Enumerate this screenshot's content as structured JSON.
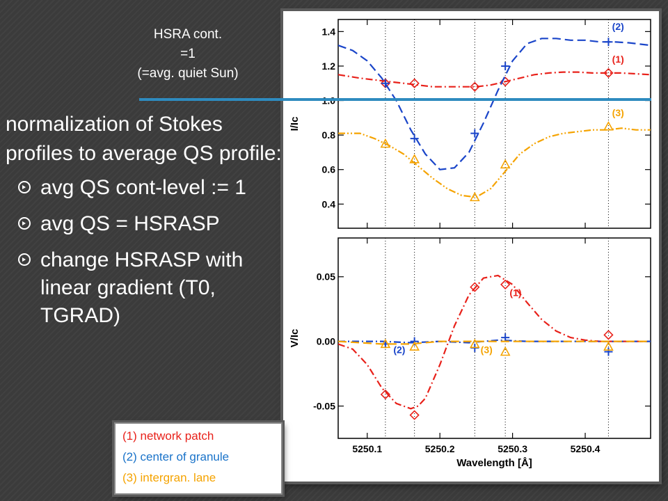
{
  "slide": {
    "top_label": [
      "HSRA cont.",
      "=1",
      "(=avg. quiet Sun)"
    ],
    "heading": "normalization of Stokes profiles to average QS profile:",
    "bullets": [
      "avg QS cont-level := 1",
      "avg QS = HSRASP",
      "change HSRASP with linear gradient (T0, TGRAD)"
    ],
    "line_color": "#2e8bbf",
    "legend": [
      {
        "label": "(1) network patch",
        "color": "#e8211a"
      },
      {
        "label": "(2) center of granule",
        "color": "#1a73c9"
      },
      {
        "label": "(3) intergran. lane",
        "color": "#f5a300"
      }
    ]
  },
  "chart_data": [
    {
      "type": "line",
      "panel": "Stokes I",
      "ylabel": "I/Ic",
      "xlim": [
        5250.06,
        5250.49
      ],
      "ylim": [
        0.26,
        1.47
      ],
      "yticks": [
        0.4,
        0.6,
        0.8,
        1.0,
        1.2,
        1.4
      ],
      "ytick_labels": [
        "0.4",
        "0.6",
        "0.8",
        "1.0",
        "1.2",
        "1.4"
      ],
      "vlines": [
        5250.125,
        5250.165,
        5250.248,
        5250.29,
        5250.432
      ],
      "grid": false,
      "series": [
        {
          "name": "(1)",
          "color": "#e8211a",
          "dash": "dashdot",
          "marker": "diamond",
          "x": [
            5250.06,
            5250.09,
            5250.11,
            5250.13,
            5250.15,
            5250.17,
            5250.19,
            5250.21,
            5250.23,
            5250.25,
            5250.27,
            5250.29,
            5250.31,
            5250.33,
            5250.35,
            5250.37,
            5250.39,
            5250.41,
            5250.43,
            5250.45,
            5250.47,
            5250.49
          ],
          "y": [
            1.15,
            1.13,
            1.12,
            1.11,
            1.1,
            1.09,
            1.08,
            1.08,
            1.08,
            1.08,
            1.09,
            1.11,
            1.13,
            1.15,
            1.16,
            1.165,
            1.165,
            1.16,
            1.16,
            1.16,
            1.155,
            1.15
          ],
          "mx": [
            5250.125,
            5250.165,
            5250.248,
            5250.29,
            5250.432
          ],
          "my": [
            1.1,
            1.1,
            1.08,
            1.11,
            1.16
          ]
        },
        {
          "name": "(2)",
          "color": "#1a45c9",
          "dash": "dashed",
          "marker": "plus",
          "x": [
            5250.06,
            5250.08,
            5250.1,
            5250.12,
            5250.14,
            5250.16,
            5250.18,
            5250.2,
            5250.22,
            5250.24,
            5250.26,
            5250.28,
            5250.3,
            5250.32,
            5250.34,
            5250.36,
            5250.38,
            5250.4,
            5250.42,
            5250.44,
            5250.46,
            5250.49
          ],
          "y": [
            1.32,
            1.29,
            1.23,
            1.13,
            1.0,
            0.83,
            0.69,
            0.6,
            0.61,
            0.7,
            0.87,
            1.06,
            1.23,
            1.33,
            1.36,
            1.36,
            1.35,
            1.35,
            1.34,
            1.34,
            1.335,
            1.32
          ],
          "mx": [
            5250.125,
            5250.165,
            5250.248,
            5250.29,
            5250.432
          ],
          "my": [
            1.1,
            0.78,
            0.81,
            1.2,
            1.34
          ]
        },
        {
          "name": "(3)",
          "color": "#f5a300",
          "dash": "dashdotdot",
          "marker": "triangle",
          "x": [
            5250.06,
            5250.09,
            5250.11,
            5250.13,
            5250.15,
            5250.17,
            5250.19,
            5250.21,
            5250.23,
            5250.25,
            5250.27,
            5250.29,
            5250.31,
            5250.33,
            5250.35,
            5250.37,
            5250.39,
            5250.41,
            5250.43,
            5250.45,
            5250.47,
            5250.49
          ],
          "y": [
            0.81,
            0.81,
            0.78,
            0.74,
            0.69,
            0.62,
            0.55,
            0.49,
            0.45,
            0.44,
            0.49,
            0.59,
            0.69,
            0.75,
            0.79,
            0.81,
            0.82,
            0.83,
            0.83,
            0.84,
            0.83,
            0.83
          ],
          "mx": [
            5250.125,
            5250.165,
            5250.248,
            5250.29,
            5250.432
          ],
          "my": [
            0.75,
            0.66,
            0.44,
            0.63,
            0.85
          ]
        }
      ],
      "labels": [
        {
          "text": "(2)",
          "x": 5250.437,
          "y": 1.41,
          "color": "#1a45c9"
        },
        {
          "text": "(1)",
          "x": 5250.437,
          "y": 1.22,
          "color": "#e8211a"
        },
        {
          "text": "(3)",
          "x": 5250.437,
          "y": 0.91,
          "color": "#f5a300"
        }
      ]
    },
    {
      "type": "line",
      "panel": "Stokes V",
      "xlabel": "Wavelength [Å]",
      "ylabel": "V/Ic",
      "xlim": [
        5250.06,
        5250.49
      ],
      "ylim": [
        -0.075,
        0.08
      ],
      "yticks": [
        -0.05,
        0.0,
        0.05
      ],
      "ytick_labels": [
        "-0.05",
        "0.00",
        "0.05"
      ],
      "xticks": [
        5250.1,
        5250.2,
        5250.3,
        5250.4
      ],
      "xtick_labels": [
        "5250.1",
        "5250.2",
        "5250.3",
        "5250.4"
      ],
      "vlines": [
        5250.125,
        5250.165,
        5250.248,
        5250.29,
        5250.432
      ],
      "grid": false,
      "series": [
        {
          "name": "(1)",
          "color": "#e8211a",
          "dash": "dashdot",
          "marker": "diamond",
          "x": [
            5250.06,
            5250.08,
            5250.1,
            5250.12,
            5250.14,
            5250.16,
            5250.17,
            5250.18,
            5250.2,
            5250.22,
            5250.24,
            5250.26,
            5250.28,
            5250.3,
            5250.32,
            5250.34,
            5250.36,
            5250.38,
            5250.4,
            5250.42,
            5250.44,
            5250.46,
            5250.49
          ],
          "y": [
            -0.002,
            -0.006,
            -0.018,
            -0.036,
            -0.048,
            -0.052,
            -0.05,
            -0.044,
            -0.018,
            0.012,
            0.036,
            0.049,
            0.051,
            0.044,
            0.03,
            0.017,
            0.008,
            0.003,
            0.001,
            0.0,
            0.0,
            0.0,
            0.0
          ],
          "mx": [
            5250.125,
            5250.165,
            5250.248,
            5250.29,
            5250.432
          ],
          "my": [
            -0.041,
            -0.057,
            0.042,
            0.044,
            0.005
          ]
        },
        {
          "name": "(2)",
          "color": "#1a45c9",
          "dash": "dashdot",
          "marker": "plus",
          "x": [
            5250.06,
            5250.12,
            5250.16,
            5250.2,
            5250.24,
            5250.28,
            5250.32,
            5250.4,
            5250.49
          ],
          "y": [
            0.0,
            0.0,
            -0.001,
            0.0,
            -0.001,
            0.001,
            0.0,
            0.0,
            0.0
          ],
          "mx": [
            5250.125,
            5250.165,
            5250.248,
            5250.29,
            5250.432
          ],
          "my": [
            -0.002,
            0.0,
            -0.005,
            0.003,
            -0.008
          ]
        },
        {
          "name": "(3)",
          "color": "#f5a300",
          "dash": "dashed",
          "marker": "triangle",
          "x": [
            5250.06,
            5250.12,
            5250.16,
            5250.2,
            5250.24,
            5250.28,
            5250.32,
            5250.4,
            5250.49
          ],
          "y": [
            0.0,
            -0.002,
            -0.002,
            0.0,
            0.0,
            0.0,
            0.0,
            0.0,
            0.0
          ],
          "mx": [
            5250.125,
            5250.165,
            5250.248,
            5250.29,
            5250.432
          ],
          "my": [
            -0.002,
            -0.004,
            -0.002,
            -0.008,
            -0.004
          ]
        }
      ],
      "labels": [
        {
          "text": "(1)",
          "x": 5250.296,
          "y": 0.035,
          "color": "#e8211a"
        },
        {
          "text": "(2)",
          "x": 5250.136,
          "y": -0.009,
          "color": "#1a45c9"
        },
        {
          "text": "(3)",
          "x": 5250.256,
          "y": -0.009,
          "color": "#f5a300"
        }
      ]
    }
  ]
}
